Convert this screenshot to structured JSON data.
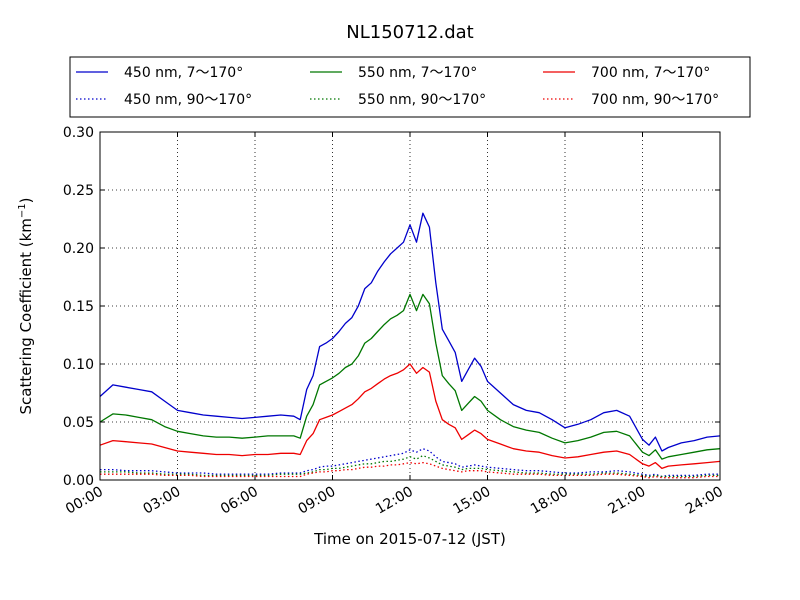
{
  "chart_data": {
    "type": "line",
    "title": "NL150712.dat",
    "xlabel": "Time on 2015-07-12 (JST)",
    "ylabel_main": "Scattering Coefficient (km",
    "ylabel_sup": "−1",
    "ylabel_end": ")",
    "xlim": [
      0,
      24
    ],
    "ylim": [
      0,
      0.3
    ],
    "x_ticks": [
      0,
      3,
      6,
      9,
      12,
      15,
      18,
      21,
      24
    ],
    "x_tick_labels": [
      "00:00",
      "03:00",
      "06:00",
      "09:00",
      "12:00",
      "15:00",
      "18:00",
      "21:00",
      "24:00"
    ],
    "y_ticks": [
      0,
      0.05,
      0.1,
      0.15,
      0.2,
      0.25,
      0.3
    ],
    "y_tick_labels": [
      "0.00",
      "0.05",
      "0.10",
      "0.15",
      "0.20",
      "0.25",
      "0.30"
    ],
    "grid": true,
    "legend_position": "top",
    "x": [
      0,
      0.5,
      1,
      1.5,
      2,
      2.5,
      3,
      3.5,
      4,
      4.5,
      5,
      5.5,
      6,
      6.5,
      7,
      7.5,
      7.75,
      8,
      8.25,
      8.5,
      8.75,
      9,
      9.25,
      9.5,
      9.75,
      10,
      10.25,
      10.5,
      10.75,
      11,
      11.25,
      11.5,
      11.75,
      12,
      12.25,
      12.5,
      12.75,
      13,
      13.25,
      13.5,
      13.75,
      14,
      14.25,
      14.5,
      14.75,
      15,
      15.5,
      16,
      16.5,
      17,
      17.5,
      18,
      18.5,
      19,
      19.5,
      20,
      20.5,
      21,
      21.25,
      21.5,
      21.75,
      22,
      22.5,
      23,
      23.5,
      24
    ],
    "series": [
      {
        "name": "450 nm, 7～170°",
        "color": "#0000cc",
        "style": "solid",
        "values": [
          0.072,
          0.082,
          0.08,
          0.078,
          0.076,
          0.068,
          0.06,
          0.058,
          0.056,
          0.055,
          0.054,
          0.053,
          0.054,
          0.055,
          0.056,
          0.055,
          0.052,
          0.078,
          0.09,
          0.115,
          0.118,
          0.122,
          0.128,
          0.135,
          0.14,
          0.15,
          0.165,
          0.17,
          0.18,
          0.188,
          0.195,
          0.2,
          0.205,
          0.22,
          0.205,
          0.23,
          0.218,
          0.17,
          0.13,
          0.12,
          0.11,
          0.085,
          0.095,
          0.105,
          0.098,
          0.085,
          0.075,
          0.065,
          0.06,
          0.058,
          0.052,
          0.045,
          0.048,
          0.052,
          0.058,
          0.06,
          0.055,
          0.035,
          0.03,
          0.037,
          0.025,
          0.028,
          0.032,
          0.034,
          0.037,
          0.038
        ]
      },
      {
        "name": "450 nm, 90～170°",
        "color": "#0000cc",
        "style": "dotted",
        "values": [
          0.009,
          0.009,
          0.008,
          0.008,
          0.008,
          0.007,
          0.006,
          0.006,
          0.006,
          0.005,
          0.005,
          0.005,
          0.005,
          0.005,
          0.006,
          0.006,
          0.006,
          0.008,
          0.009,
          0.011,
          0.012,
          0.012,
          0.013,
          0.014,
          0.015,
          0.016,
          0.017,
          0.018,
          0.019,
          0.02,
          0.021,
          0.022,
          0.023,
          0.026,
          0.024,
          0.027,
          0.025,
          0.02,
          0.016,
          0.015,
          0.014,
          0.011,
          0.012,
          0.013,
          0.012,
          0.011,
          0.01,
          0.009,
          0.008,
          0.008,
          0.007,
          0.006,
          0.006,
          0.007,
          0.007,
          0.008,
          0.007,
          0.005,
          0.004,
          0.005,
          0.003,
          0.004,
          0.004,
          0.004,
          0.005,
          0.005
        ]
      },
      {
        "name": "550 nm, 7～170°",
        "color": "#007700",
        "style": "solid",
        "values": [
          0.05,
          0.057,
          0.056,
          0.054,
          0.052,
          0.046,
          0.042,
          0.04,
          0.038,
          0.037,
          0.037,
          0.036,
          0.037,
          0.038,
          0.038,
          0.038,
          0.036,
          0.055,
          0.065,
          0.082,
          0.085,
          0.088,
          0.092,
          0.097,
          0.1,
          0.107,
          0.118,
          0.122,
          0.128,
          0.134,
          0.139,
          0.142,
          0.146,
          0.16,
          0.146,
          0.16,
          0.152,
          0.118,
          0.09,
          0.083,
          0.077,
          0.06,
          0.066,
          0.072,
          0.068,
          0.06,
          0.052,
          0.046,
          0.043,
          0.041,
          0.036,
          0.032,
          0.034,
          0.037,
          0.041,
          0.042,
          0.038,
          0.024,
          0.021,
          0.026,
          0.018,
          0.02,
          0.022,
          0.024,
          0.026,
          0.027
        ]
      },
      {
        "name": "550 nm, 90～170°",
        "color": "#007700",
        "style": "dotted",
        "values": [
          0.007,
          0.007,
          0.007,
          0.006,
          0.006,
          0.005,
          0.005,
          0.005,
          0.004,
          0.004,
          0.004,
          0.004,
          0.004,
          0.004,
          0.005,
          0.005,
          0.005,
          0.006,
          0.007,
          0.009,
          0.009,
          0.01,
          0.01,
          0.011,
          0.012,
          0.013,
          0.014,
          0.014,
          0.015,
          0.016,
          0.016,
          0.017,
          0.018,
          0.02,
          0.018,
          0.021,
          0.019,
          0.016,
          0.013,
          0.012,
          0.011,
          0.009,
          0.01,
          0.01,
          0.01,
          0.009,
          0.008,
          0.007,
          0.006,
          0.006,
          0.005,
          0.005,
          0.005,
          0.005,
          0.006,
          0.006,
          0.005,
          0.004,
          0.003,
          0.004,
          0.003,
          0.003,
          0.003,
          0.003,
          0.004,
          0.004
        ]
      },
      {
        "name": "700 nm, 7～170°",
        "color": "#ee0000",
        "style": "solid",
        "values": [
          0.03,
          0.034,
          0.033,
          0.032,
          0.031,
          0.028,
          0.025,
          0.024,
          0.023,
          0.022,
          0.022,
          0.021,
          0.022,
          0.022,
          0.023,
          0.023,
          0.022,
          0.034,
          0.04,
          0.052,
          0.054,
          0.056,
          0.059,
          0.062,
          0.065,
          0.07,
          0.076,
          0.079,
          0.083,
          0.087,
          0.09,
          0.092,
          0.095,
          0.1,
          0.092,
          0.097,
          0.093,
          0.068,
          0.052,
          0.048,
          0.045,
          0.035,
          0.039,
          0.043,
          0.04,
          0.035,
          0.031,
          0.027,
          0.025,
          0.024,
          0.021,
          0.019,
          0.02,
          0.022,
          0.024,
          0.025,
          0.022,
          0.014,
          0.012,
          0.015,
          0.01,
          0.012,
          0.013,
          0.014,
          0.015,
          0.016
        ]
      },
      {
        "name": "700 nm, 90～170°",
        "color": "#ee0000",
        "style": "dotted",
        "values": [
          0.005,
          0.005,
          0.005,
          0.005,
          0.005,
          0.004,
          0.004,
          0.004,
          0.003,
          0.003,
          0.003,
          0.003,
          0.003,
          0.003,
          0.003,
          0.003,
          0.003,
          0.005,
          0.006,
          0.007,
          0.007,
          0.008,
          0.008,
          0.009,
          0.009,
          0.01,
          0.011,
          0.011,
          0.012,
          0.012,
          0.013,
          0.013,
          0.014,
          0.015,
          0.014,
          0.015,
          0.014,
          0.012,
          0.01,
          0.009,
          0.008,
          0.007,
          0.008,
          0.008,
          0.008,
          0.007,
          0.006,
          0.005,
          0.005,
          0.005,
          0.004,
          0.004,
          0.004,
          0.004,
          0.005,
          0.005,
          0.004,
          0.003,
          0.002,
          0.003,
          0.002,
          0.002,
          0.002,
          0.002,
          0.003,
          0.003
        ]
      }
    ]
  }
}
